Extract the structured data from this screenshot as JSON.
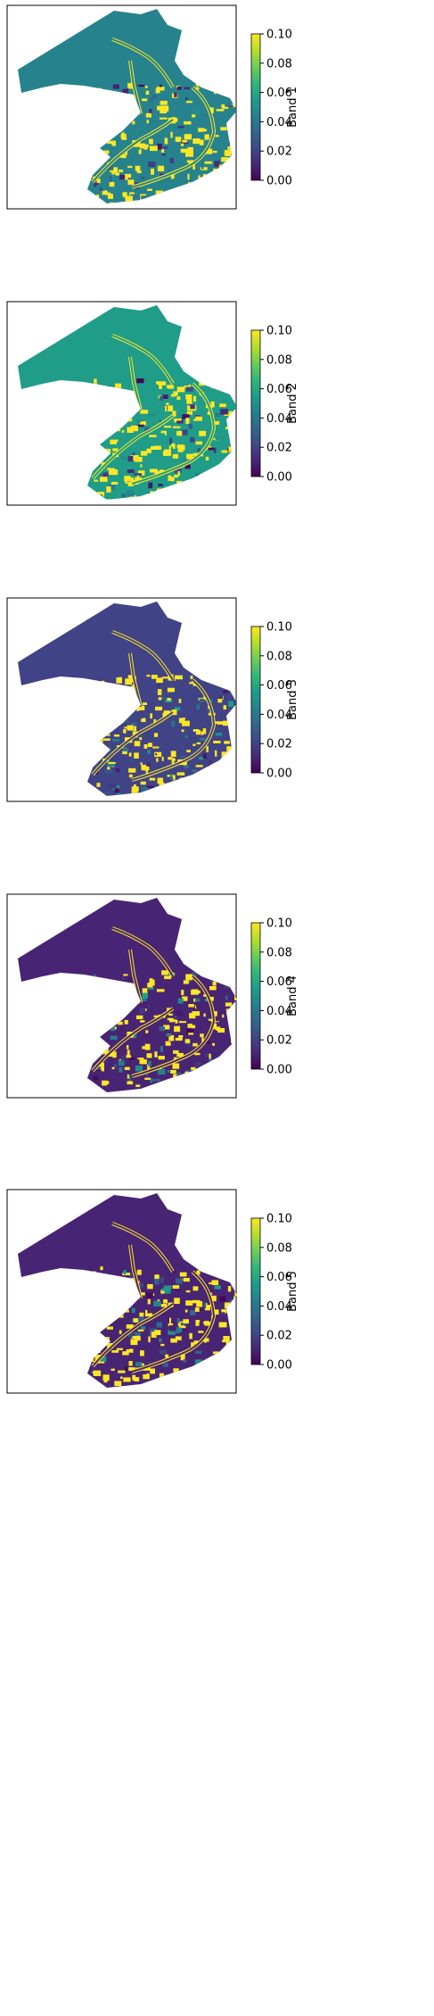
{
  "chart_data": [
    {
      "type": "heatmap",
      "colormap": "viridis",
      "colorbar_label": "Band 1",
      "vmin": 0.0,
      "vmax": 0.1,
      "colorbar_ticks": [
        "0.00",
        "0.02",
        "0.04",
        "0.06",
        "0.08",
        "0.10"
      ],
      "typical_water_value": 0.045,
      "typical_land_value": 0.1
    },
    {
      "type": "heatmap",
      "colormap": "viridis",
      "colorbar_label": "Band 2",
      "vmin": 0.0,
      "vmax": 0.1,
      "colorbar_ticks": [
        "0.00",
        "0.02",
        "0.04",
        "0.06",
        "0.08",
        "0.10"
      ],
      "typical_water_value": 0.055,
      "typical_land_value": 0.1
    },
    {
      "type": "heatmap",
      "colormap": "viridis",
      "colorbar_label": "Band 3",
      "vmin": 0.0,
      "vmax": 0.1,
      "colorbar_ticks": [
        "0.00",
        "0.02",
        "0.04",
        "0.06",
        "0.08",
        "0.10"
      ],
      "typical_water_value": 0.02,
      "typical_land_value": 0.1
    },
    {
      "type": "heatmap",
      "colormap": "viridis",
      "colorbar_label": "Band 4",
      "vmin": 0.0,
      "vmax": 0.1,
      "colorbar_ticks": [
        "0.00",
        "0.02",
        "0.04",
        "0.06",
        "0.08",
        "0.10"
      ],
      "typical_water_value": 0.01,
      "typical_land_value": 0.1
    },
    {
      "type": "heatmap",
      "colormap": "viridis",
      "colorbar_label": "Band 5",
      "vmin": 0.0,
      "vmax": 0.1,
      "colorbar_ticks": [
        "0.00",
        "0.02",
        "0.04",
        "0.06",
        "0.08",
        "0.10"
      ],
      "typical_water_value": 0.01,
      "typical_land_value": 0.1
    }
  ]
}
